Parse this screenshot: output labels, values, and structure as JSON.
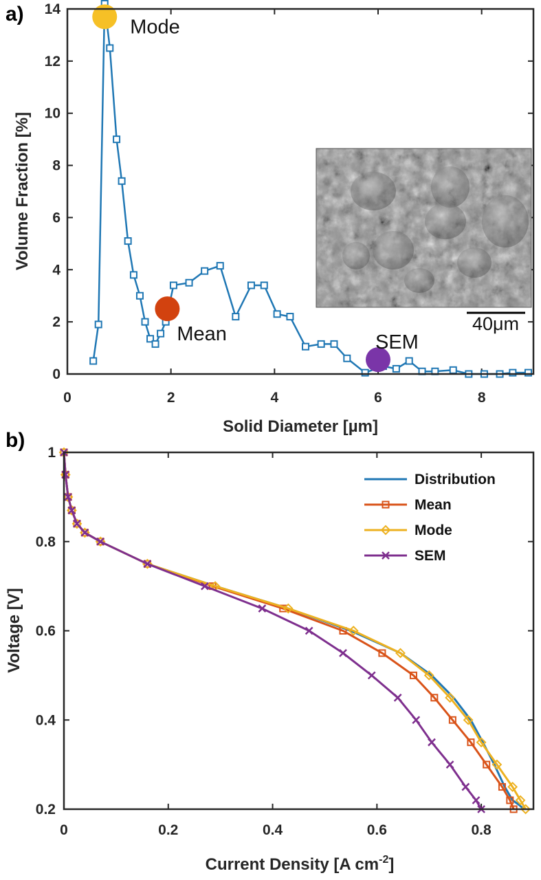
{
  "chart_data": [
    {
      "type": "line",
      "panel_label": "a)",
      "xlabel": "Solid Diameter [µm]",
      "ylabel": "Volume Fraction [%]",
      "xlim": [
        0,
        9
      ],
      "ylim": [
        0,
        14
      ],
      "xticks": [
        "0",
        "2",
        "4",
        "6",
        "8"
      ],
      "yticks": [
        "0",
        "2",
        "4",
        "6",
        "8",
        "10",
        "12",
        "14"
      ],
      "series": [
        {
          "name": "Distribution",
          "color": "#1f77b4",
          "marker": "square",
          "x": [
            0.5,
            0.6,
            0.72,
            0.82,
            0.95,
            1.05,
            1.17,
            1.28,
            1.4,
            1.5,
            1.6,
            1.7,
            1.8,
            1.9,
            2.05,
            2.35,
            2.65,
            2.95,
            3.25,
            3.55,
            3.8,
            4.05,
            4.3,
            4.6,
            4.9,
            5.15,
            5.4,
            5.75,
            6.1,
            6.35,
            6.6,
            6.85,
            7.1,
            7.45,
            7.75,
            8.05,
            8.35,
            8.6,
            8.9
          ],
          "values": [
            0.5,
            1.9,
            14.2,
            12.5,
            9.0,
            7.4,
            5.1,
            3.8,
            3.0,
            2.0,
            1.35,
            1.15,
            1.55,
            2.0,
            3.4,
            3.5,
            3.95,
            4.15,
            2.2,
            3.4,
            3.4,
            2.3,
            2.2,
            1.05,
            1.15,
            1.15,
            0.6,
            0.05,
            0.3,
            0.2,
            0.5,
            0.1,
            0.1,
            0.15,
            0.0,
            0.0,
            0.0,
            0.05,
            0.05
          ]
        }
      ],
      "annotations": [
        {
          "label": "Mode",
          "x": 0.72,
          "y": 13.7,
          "color": "#f6c026"
        },
        {
          "label": "Mean",
          "x": 1.93,
          "y": 2.5,
          "color": "#d2420f"
        },
        {
          "label": "SEM",
          "x": 6.0,
          "y": 0.55,
          "color": "#7a35a8"
        }
      ],
      "inset": {
        "scale_bar_label": "40μm"
      }
    },
    {
      "type": "line",
      "panel_label": "b)",
      "xlabel": "Current Density [A cm",
      "xlabel_superscript": "-2",
      "xlabel_suffix": "]",
      "ylabel": "Voltage [V]",
      "xlim": [
        0,
        0.9
      ],
      "ylim": [
        0.2,
        1.0
      ],
      "xticks": [
        "0",
        "0.2",
        "0.4",
        "0.6",
        "0.8"
      ],
      "yticks": [
        "0.2",
        "0.4",
        "0.6",
        "0.8",
        "1"
      ],
      "legend_position": "top-right",
      "series": [
        {
          "name": "Distribution",
          "color": "#1f77b4",
          "marker": "none",
          "x": [
            0.0,
            0.003,
            0.008,
            0.015,
            0.025,
            0.04,
            0.07,
            0.16,
            0.29,
            0.43,
            0.55,
            0.645,
            0.705,
            0.747,
            0.78,
            0.803,
            0.825,
            0.845,
            0.86,
            0.872,
            0.882
          ],
          "values": [
            1.0,
            0.95,
            0.9,
            0.87,
            0.84,
            0.82,
            0.8,
            0.75,
            0.7,
            0.65,
            0.6,
            0.55,
            0.5,
            0.45,
            0.4,
            0.35,
            0.3,
            0.25,
            0.22,
            0.21,
            0.2
          ]
        },
        {
          "name": "Mean",
          "color": "#d95319",
          "marker": "square",
          "x": [
            0.0,
            0.003,
            0.008,
            0.015,
            0.025,
            0.04,
            0.07,
            0.16,
            0.285,
            0.42,
            0.535,
            0.61,
            0.67,
            0.71,
            0.745,
            0.78,
            0.81,
            0.84,
            0.855,
            0.862
          ],
          "values": [
            1.0,
            0.95,
            0.9,
            0.87,
            0.84,
            0.82,
            0.8,
            0.75,
            0.7,
            0.65,
            0.6,
            0.55,
            0.5,
            0.45,
            0.4,
            0.35,
            0.3,
            0.25,
            0.22,
            0.2
          ]
        },
        {
          "name": "Mode",
          "color": "#edb120",
          "marker": "diamond",
          "x": [
            0.0,
            0.003,
            0.008,
            0.015,
            0.025,
            0.04,
            0.07,
            0.16,
            0.29,
            0.43,
            0.555,
            0.645,
            0.7,
            0.74,
            0.775,
            0.8,
            0.83,
            0.86,
            0.875,
            0.885
          ],
          "values": [
            1.0,
            0.95,
            0.9,
            0.87,
            0.84,
            0.82,
            0.8,
            0.75,
            0.7,
            0.65,
            0.6,
            0.55,
            0.5,
            0.45,
            0.4,
            0.35,
            0.3,
            0.25,
            0.22,
            0.2
          ]
        },
        {
          "name": "SEM",
          "color": "#7e2f8e",
          "marker": "x",
          "x": [
            0.0,
            0.003,
            0.008,
            0.015,
            0.025,
            0.04,
            0.07,
            0.16,
            0.27,
            0.38,
            0.47,
            0.535,
            0.59,
            0.64,
            0.675,
            0.705,
            0.74,
            0.77,
            0.79,
            0.8
          ],
          "values": [
            1.0,
            0.95,
            0.9,
            0.87,
            0.84,
            0.82,
            0.8,
            0.75,
            0.7,
            0.65,
            0.6,
            0.55,
            0.5,
            0.45,
            0.4,
            0.35,
            0.3,
            0.25,
            0.22,
            0.2
          ]
        }
      ]
    }
  ]
}
